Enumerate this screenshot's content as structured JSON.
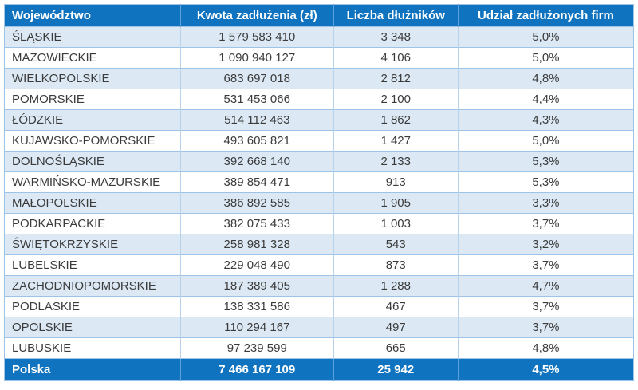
{
  "table": {
    "columns": [
      {
        "label": "Województwo"
      },
      {
        "label": "Kwota zadłużenia (zł)"
      },
      {
        "label": "Liczba dłużników"
      },
      {
        "label": "Udział zadłużonych firm"
      }
    ],
    "rows": [
      {
        "name": "ŚLĄSKIE",
        "amount": "1 579 583 410",
        "debtors": "3 348",
        "share": "5,0%"
      },
      {
        "name": "MAZOWIECKIE",
        "amount": "1 090 940 127",
        "debtors": "4 106",
        "share": "5,0%"
      },
      {
        "name": "WIELKOPOLSKIE",
        "amount": "683 697 018",
        "debtors": "2 812",
        "share": "4,8%"
      },
      {
        "name": "POMORSKIE",
        "amount": "531 453 066",
        "debtors": "2 100",
        "share": "4,4%"
      },
      {
        "name": "ŁÓDZKIE",
        "amount": "514 112 463",
        "debtors": "1 862",
        "share": "4,3%"
      },
      {
        "name": "KUJAWSKO-POMORSKIE",
        "amount": "493 605 821",
        "debtors": "1 427",
        "share": "5,0%"
      },
      {
        "name": "DOLNOŚLĄSKIE",
        "amount": "392 668 140",
        "debtors": "2 133",
        "share": "5,3%"
      },
      {
        "name": "WARMIŃSKO-MAZURSKIE",
        "amount": "389 854 471",
        "debtors": "913",
        "share": "5,3%"
      },
      {
        "name": "MAŁOPOLSKIE",
        "amount": "386 892 585",
        "debtors": "1 905",
        "share": "3,3%"
      },
      {
        "name": "PODKARPACKIE",
        "amount": "382 075 433",
        "debtors": "1 003",
        "share": "3,7%"
      },
      {
        "name": "ŚWIĘTOKRZYSKIE",
        "amount": "258 981 328",
        "debtors": "543",
        "share": "3,2%"
      },
      {
        "name": "LUBELSKIE",
        "amount": "229 048 490",
        "debtors": "873",
        "share": "3,7%"
      },
      {
        "name": "ZACHODNIOPOMORSKIE",
        "amount": "187 389 405",
        "debtors": "1 288",
        "share": "4,7%"
      },
      {
        "name": "PODLASKIE",
        "amount": "138 331 586",
        "debtors": "467",
        "share": "3,7%"
      },
      {
        "name": "OPOLSKIE",
        "amount": "110 294 167",
        "debtors": "497",
        "share": "3,7%"
      },
      {
        "name": "LUBUSKIE",
        "amount": "97 239 599",
        "debtors": "665",
        "share": "4,8%"
      }
    ],
    "total": {
      "name": "Polska",
      "amount": "7 466 167 109",
      "debtors": "25 942",
      "share": "4,5%"
    }
  },
  "colors": {
    "header_bg": "#0F73BF",
    "total_bg": "#0F73BF",
    "header_text": "#FFFFFF",
    "row_alt_bg": "#DCE9F5",
    "row_bg": "#FFFFFF",
    "border": "#9DC3E6",
    "body_text": "#3B3B3B"
  },
  "chart_data": {
    "type": "table",
    "columns": [
      "Województwo",
      "Kwota zadłużenia (zł)",
      "Liczba dłużników",
      "Udział zadłużonych firm"
    ],
    "rows": [
      [
        "ŚLĄSKIE",
        1579583410,
        3348,
        "5,0%"
      ],
      [
        "MAZOWIECKIE",
        1090940127,
        4106,
        "5,0%"
      ],
      [
        "WIELKOPOLSKIE",
        683697018,
        2812,
        "4,8%"
      ],
      [
        "POMORSKIE",
        531453066,
        2100,
        "4,4%"
      ],
      [
        "ŁÓDZKIE",
        514112463,
        1862,
        "4,3%"
      ],
      [
        "KUJAWSKO-POMORSKIE",
        493605821,
        1427,
        "5,0%"
      ],
      [
        "DOLNOŚLĄSKIE",
        392668140,
        2133,
        "5,3%"
      ],
      [
        "WARMIŃSKO-MAZURSKIE",
        389854471,
        913,
        "5,3%"
      ],
      [
        "MAŁOPOLSKIE",
        386892585,
        1905,
        "3,3%"
      ],
      [
        "PODKARPACKIE",
        382075433,
        1003,
        "3,7%"
      ],
      [
        "ŚWIĘTOKRZYSKIE",
        258981328,
        543,
        "3,2%"
      ],
      [
        "LUBELSKIE",
        229048490,
        873,
        "3,7%"
      ],
      [
        "ZACHODNIOPOMORSKIE",
        187389405,
        1288,
        "4,7%"
      ],
      [
        "PODLASKIE",
        138331586,
        467,
        "3,7%"
      ],
      [
        "OPOLSKIE",
        110294167,
        497,
        "3,7%"
      ],
      [
        "LUBUSKIE",
        97239599,
        665,
        "4,8%"
      ]
    ],
    "total_row": [
      "Polska",
      7466167109,
      25942,
      "4,5%"
    ],
    "legend_position": "none",
    "grid": true
  }
}
